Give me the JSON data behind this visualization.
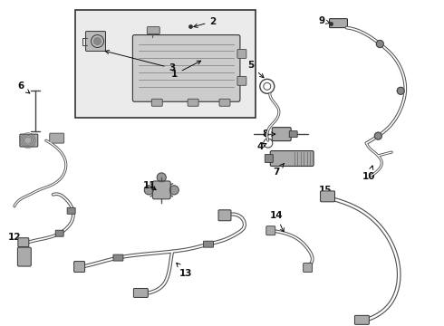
{
  "background_color": "#ffffff",
  "fig_width": 4.9,
  "fig_height": 3.6,
  "dpi": 100,
  "label_fontsize": 7.5,
  "line_color": "#444444",
  "box_bg": "#e8e8f0",
  "box_edge": "#444444",
  "hose_color": "#555555",
  "hose_lw": 2.2,
  "hose_inner_color": "#ffffff",
  "hose_inner_lw": 0.9
}
